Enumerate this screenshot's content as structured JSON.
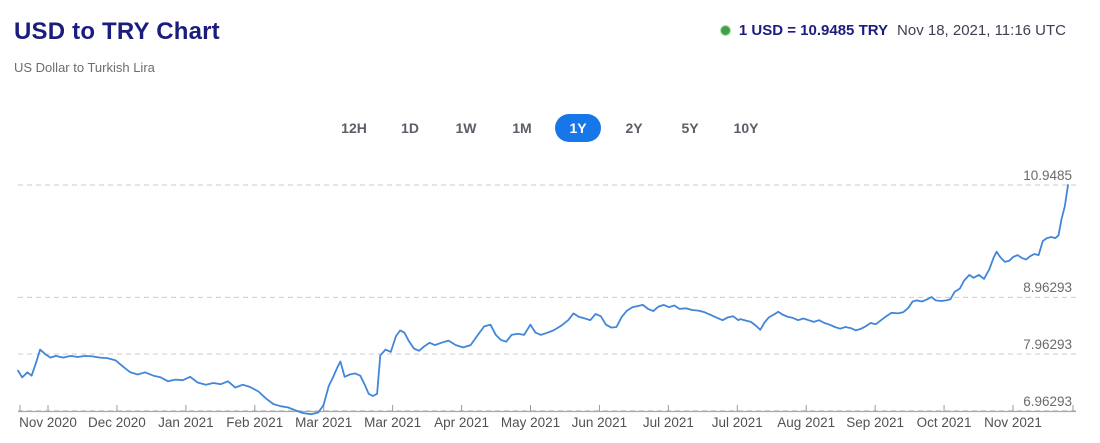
{
  "header": {
    "title": "USD to TRY Chart",
    "subtitle": "US Dollar to Turkish Lira",
    "live_rate": {
      "pair_label": "1 USD = 10.9485 TRY",
      "timestamp": "Nov 18, 2021, 11:16 UTC",
      "dot_color": "#43a047"
    }
  },
  "range_selector": {
    "options": [
      "12H",
      "1D",
      "1W",
      "1M",
      "1Y",
      "2Y",
      "5Y",
      "10Y"
    ],
    "active": "1Y",
    "active_color": "#1877e8"
  },
  "chart_data": {
    "type": "line",
    "title": "USD to TRY exchange rate, 1 year",
    "line_color": "#4286d9",
    "grid_color": "#cccccc",
    "grid_dashed": true,
    "y_axis_side": "right",
    "ylim": [
      6.85,
      11.25
    ],
    "y_gridlines": [
      {
        "value": 10.9485,
        "label": "10.9485"
      },
      {
        "value": 8.96293,
        "label": "8.96293"
      },
      {
        "value": 7.96293,
        "label": "7.96293"
      },
      {
        "value": 6.96293,
        "label": "6.96293"
      }
    ],
    "x_tick_labels": [
      "Nov 2020",
      "Dec 2020",
      "Jan 2021",
      "Feb 2021",
      "Mar 2021",
      "Mar 2021",
      "Apr 2021",
      "May 2021",
      "Jun 2021",
      "Jul 2021",
      "Jul 2021",
      "Aug 2021",
      "Sep 2021",
      "Oct 2021",
      "Nov 2021"
    ],
    "x_unit": "fraction of 1-year range (0 = Nov 2020, 1 = Nov 18 2021)",
    "points": [
      [
        0.0,
        7.67
      ],
      [
        0.004,
        7.55
      ],
      [
        0.009,
        7.64
      ],
      [
        0.013,
        7.58
      ],
      [
        0.017,
        7.8
      ],
      [
        0.021,
        8.04
      ],
      [
        0.026,
        7.96
      ],
      [
        0.031,
        7.9
      ],
      [
        0.036,
        7.93
      ],
      [
        0.043,
        7.9
      ],
      [
        0.05,
        7.93
      ],
      [
        0.057,
        7.91
      ],
      [
        0.064,
        7.93
      ],
      [
        0.071,
        7.92
      ],
      [
        0.078,
        7.9
      ],
      [
        0.085,
        7.89
      ],
      [
        0.093,
        7.85
      ],
      [
        0.1,
        7.74
      ],
      [
        0.107,
        7.64
      ],
      [
        0.114,
        7.6
      ],
      [
        0.121,
        7.64
      ],
      [
        0.129,
        7.58
      ],
      [
        0.136,
        7.55
      ],
      [
        0.143,
        7.48
      ],
      [
        0.15,
        7.51
      ],
      [
        0.157,
        7.5
      ],
      [
        0.164,
        7.56
      ],
      [
        0.171,
        7.46
      ],
      [
        0.179,
        7.42
      ],
      [
        0.186,
        7.45
      ],
      [
        0.193,
        7.43
      ],
      [
        0.2,
        7.48
      ],
      [
        0.207,
        7.37
      ],
      [
        0.214,
        7.42
      ],
      [
        0.221,
        7.38
      ],
      [
        0.229,
        7.3
      ],
      [
        0.236,
        7.18
      ],
      [
        0.243,
        7.08
      ],
      [
        0.25,
        7.04
      ],
      [
        0.257,
        7.02
      ],
      [
        0.264,
        6.97
      ],
      [
        0.271,
        6.92
      ],
      [
        0.279,
        6.9
      ],
      [
        0.286,
        6.93
      ],
      [
        0.291,
        7.06
      ],
      [
        0.296,
        7.4
      ],
      [
        0.3,
        7.55
      ],
      [
        0.304,
        7.72
      ],
      [
        0.307,
        7.83
      ],
      [
        0.311,
        7.56
      ],
      [
        0.316,
        7.6
      ],
      [
        0.321,
        7.62
      ],
      [
        0.326,
        7.58
      ],
      [
        0.33,
        7.43
      ],
      [
        0.334,
        7.26
      ],
      [
        0.338,
        7.22
      ],
      [
        0.342,
        7.26
      ],
      [
        0.345,
        7.94
      ],
      [
        0.35,
        8.04
      ],
      [
        0.355,
        8.0
      ],
      [
        0.36,
        8.28
      ],
      [
        0.364,
        8.38
      ],
      [
        0.368,
        8.34
      ],
      [
        0.372,
        8.2
      ],
      [
        0.377,
        8.06
      ],
      [
        0.382,
        8.02
      ],
      [
        0.387,
        8.1
      ],
      [
        0.392,
        8.16
      ],
      [
        0.397,
        8.12
      ],
      [
        0.403,
        8.16
      ],
      [
        0.41,
        8.2
      ],
      [
        0.417,
        8.12
      ],
      [
        0.424,
        8.08
      ],
      [
        0.431,
        8.12
      ],
      [
        0.438,
        8.3
      ],
      [
        0.444,
        8.45
      ],
      [
        0.45,
        8.48
      ],
      [
        0.455,
        8.3
      ],
      [
        0.46,
        8.21
      ],
      [
        0.465,
        8.18
      ],
      [
        0.47,
        8.3
      ],
      [
        0.476,
        8.32
      ],
      [
        0.482,
        8.3
      ],
      [
        0.488,
        8.48
      ],
      [
        0.493,
        8.34
      ],
      [
        0.498,
        8.3
      ],
      [
        0.503,
        8.33
      ],
      [
        0.51,
        8.38
      ],
      [
        0.517,
        8.46
      ],
      [
        0.524,
        8.56
      ],
      [
        0.529,
        8.68
      ],
      [
        0.534,
        8.62
      ],
      [
        0.54,
        8.59
      ],
      [
        0.545,
        8.56
      ],
      [
        0.55,
        8.67
      ],
      [
        0.555,
        8.63
      ],
      [
        0.56,
        8.48
      ],
      [
        0.565,
        8.43
      ],
      [
        0.57,
        8.44
      ],
      [
        0.575,
        8.62
      ],
      [
        0.58,
        8.73
      ],
      [
        0.585,
        8.79
      ],
      [
        0.59,
        8.81
      ],
      [
        0.595,
        8.83
      ],
      [
        0.6,
        8.76
      ],
      [
        0.605,
        8.72
      ],
      [
        0.61,
        8.8
      ],
      [
        0.615,
        8.83
      ],
      [
        0.62,
        8.79
      ],
      [
        0.625,
        8.82
      ],
      [
        0.63,
        8.76
      ],
      [
        0.636,
        8.77
      ],
      [
        0.642,
        8.74
      ],
      [
        0.648,
        8.73
      ],
      [
        0.654,
        8.7
      ],
      [
        0.66,
        8.65
      ],
      [
        0.666,
        8.6
      ],
      [
        0.671,
        8.56
      ],
      [
        0.676,
        8.61
      ],
      [
        0.681,
        8.63
      ],
      [
        0.686,
        8.56
      ],
      [
        0.688,
        8.58
      ],
      [
        0.692,
        8.56
      ],
      [
        0.698,
        8.53
      ],
      [
        0.703,
        8.46
      ],
      [
        0.707,
        8.39
      ],
      [
        0.711,
        8.52
      ],
      [
        0.715,
        8.61
      ],
      [
        0.72,
        8.66
      ],
      [
        0.724,
        8.71
      ],
      [
        0.728,
        8.66
      ],
      [
        0.733,
        8.62
      ],
      [
        0.738,
        8.6
      ],
      [
        0.743,
        8.56
      ],
      [
        0.748,
        8.59
      ],
      [
        0.753,
        8.56
      ],
      [
        0.758,
        8.53
      ],
      [
        0.763,
        8.56
      ],
      [
        0.768,
        8.51
      ],
      [
        0.773,
        8.48
      ],
      [
        0.778,
        8.44
      ],
      [
        0.783,
        8.41
      ],
      [
        0.788,
        8.44
      ],
      [
        0.793,
        8.42
      ],
      [
        0.798,
        8.38
      ],
      [
        0.803,
        8.41
      ],
      [
        0.808,
        8.46
      ],
      [
        0.812,
        8.51
      ],
      [
        0.817,
        8.49
      ],
      [
        0.822,
        8.56
      ],
      [
        0.827,
        8.63
      ],
      [
        0.832,
        8.69
      ],
      [
        0.838,
        8.68
      ],
      [
        0.843,
        8.7
      ],
      [
        0.848,
        8.78
      ],
      [
        0.852,
        8.89
      ],
      [
        0.856,
        8.91
      ],
      [
        0.861,
        8.89
      ],
      [
        0.866,
        8.93
      ],
      [
        0.87,
        8.97
      ],
      [
        0.874,
        8.91
      ],
      [
        0.879,
        8.9
      ],
      [
        0.884,
        8.91
      ],
      [
        0.888,
        8.93
      ],
      [
        0.892,
        9.06
      ],
      [
        0.897,
        9.12
      ],
      [
        0.901,
        9.26
      ],
      [
        0.906,
        9.36
      ],
      [
        0.91,
        9.31
      ],
      [
        0.915,
        9.36
      ],
      [
        0.92,
        9.29
      ],
      [
        0.925,
        9.46
      ],
      [
        0.929,
        9.66
      ],
      [
        0.932,
        9.77
      ],
      [
        0.936,
        9.66
      ],
      [
        0.94,
        9.59
      ],
      [
        0.944,
        9.61
      ],
      [
        0.948,
        9.68
      ],
      [
        0.952,
        9.71
      ],
      [
        0.956,
        9.66
      ],
      [
        0.96,
        9.63
      ],
      [
        0.964,
        9.69
      ],
      [
        0.968,
        9.73
      ],
      [
        0.972,
        9.71
      ],
      [
        0.976,
        9.96
      ],
      [
        0.98,
        10.01
      ],
      [
        0.984,
        10.03
      ],
      [
        0.988,
        10.01
      ],
      [
        0.991,
        10.06
      ],
      [
        0.994,
        10.36
      ],
      [
        0.997,
        10.57
      ],
      [
        1.0,
        10.9485
      ]
    ]
  }
}
